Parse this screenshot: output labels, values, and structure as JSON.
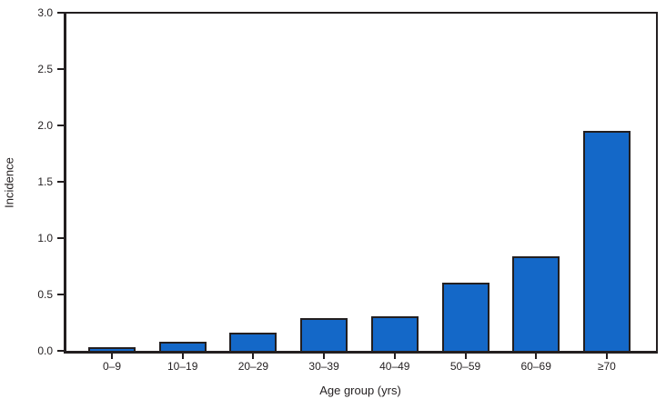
{
  "chart_data": {
    "type": "bar",
    "title": "",
    "categories": [
      "0–9",
      "10–19",
      "20–29",
      "30–39",
      "40–49",
      "50–59",
      "60–69",
      "≥70"
    ],
    "values": [
      0.03,
      0.08,
      0.16,
      0.29,
      0.31,
      0.61,
      0.84,
      1.96
    ],
    "xlabel": "Age group (yrs)",
    "ylabel": "Incidence",
    "ylim": [
      0.0,
      3.0
    ],
    "ytick_step": 0.5,
    "ytick_labels": [
      "0.0",
      "0.5",
      "1.0",
      "1.5",
      "2.0",
      "2.5",
      "3.0"
    ],
    "grid": false,
    "legend": "none",
    "bar_color": "#1468c8",
    "bar_border_color": "#231f20",
    "axis_color": "#231f20",
    "text_color": "#231f20"
  }
}
